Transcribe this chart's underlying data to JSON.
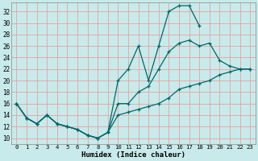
{
  "title": "",
  "xlabel": "Humidex (Indice chaleur)",
  "bg_color": "#c8eaea",
  "grid_color": "#e8a0a0",
  "line_color": "#006868",
  "xlim": [
    -0.5,
    23.5
  ],
  "ylim": [
    9,
    33.5
  ],
  "xticks": [
    0,
    1,
    2,
    3,
    4,
    5,
    6,
    7,
    8,
    9,
    10,
    11,
    12,
    13,
    14,
    15,
    16,
    17,
    18,
    19,
    20,
    21,
    22,
    23
  ],
  "yticks": [
    10,
    12,
    14,
    16,
    18,
    20,
    22,
    24,
    26,
    28,
    30,
    32
  ],
  "line1_x": [
    0,
    1,
    2,
    3,
    4,
    5,
    6,
    7,
    8,
    9,
    10,
    11,
    12,
    13,
    14,
    15,
    16,
    17,
    18
  ],
  "line1_y": [
    16,
    13.5,
    12.5,
    14,
    12.5,
    12,
    11.5,
    10.5,
    10,
    11,
    20,
    22,
    26,
    20,
    26,
    32,
    33,
    33,
    29.5
  ],
  "line2_x": [
    0,
    1,
    2,
    3,
    4,
    5,
    6,
    7,
    8,
    9,
    10,
    11,
    12,
    13,
    14,
    15,
    16,
    17,
    18,
    19,
    20,
    21,
    22,
    23
  ],
  "line2_y": [
    16,
    13.5,
    12.5,
    14,
    12.5,
    12,
    11.5,
    10.5,
    10,
    11,
    16,
    16,
    18,
    19,
    22,
    25,
    26.5,
    27,
    26,
    26.5,
    23.5,
    22.5,
    22,
    22
  ],
  "line3_x": [
    0,
    1,
    2,
    3,
    4,
    5,
    6,
    7,
    8,
    9,
    10,
    11,
    12,
    13,
    14,
    15,
    16,
    17,
    18,
    19,
    20,
    21,
    22,
    23
  ],
  "line3_y": [
    16,
    13.5,
    12.5,
    14,
    12.5,
    12,
    11.5,
    10.5,
    10,
    11,
    14,
    14.5,
    15,
    15.5,
    16,
    17,
    18.5,
    19,
    19.5,
    20,
    21,
    21.5,
    22,
    22
  ]
}
